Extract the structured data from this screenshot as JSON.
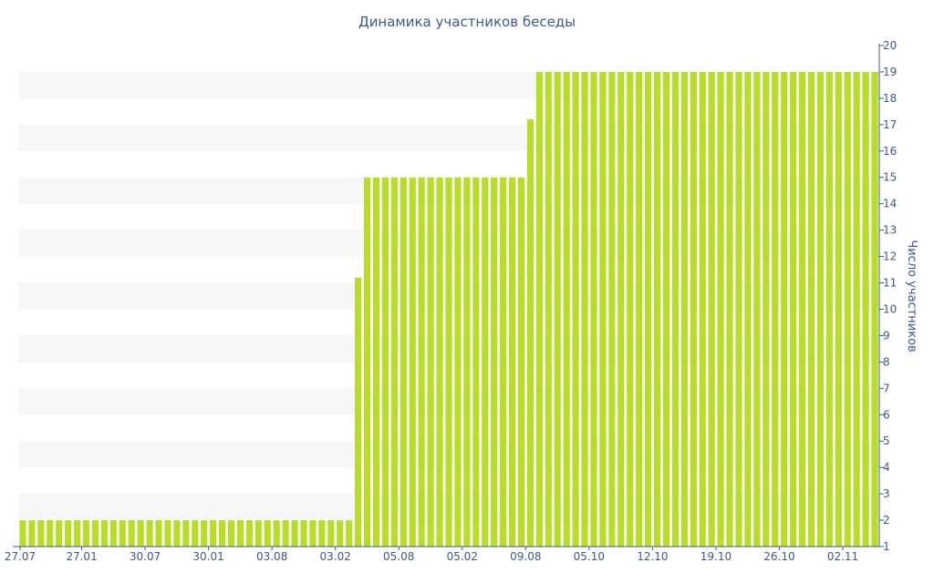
{
  "chart_data": {
    "type": "bar",
    "title": "Динамика участников беседы",
    "ylabel": "Число участников",
    "xlabel": "",
    "ylim": [
      1,
      20
    ],
    "y_ticks": [
      1,
      2,
      3,
      4,
      5,
      6,
      7,
      8,
      9,
      10,
      11,
      12,
      13,
      14,
      15,
      16,
      17,
      18,
      19,
      20
    ],
    "x_tick_labels": [
      "27.07",
      "27.01",
      "30.07",
      "30.01",
      "03.08",
      "03.02",
      "05.08",
      "05.02",
      "09.08",
      "05.10",
      "12.10",
      "19.10",
      "26.10",
      "02.11"
    ],
    "bar_color": "#b7dd29",
    "grid_band_color": "#f7f7f7",
    "text_color": "#3b5a8f",
    "grid": true,
    "y_axis_side": "right",
    "series": [
      {
        "values": [
          2,
          2,
          2,
          2,
          2,
          2,
          2,
          2,
          2,
          2,
          2,
          2,
          2,
          2,
          2,
          2,
          2,
          2,
          2,
          2,
          2,
          2,
          2,
          2,
          2,
          2,
          2,
          2,
          2,
          2,
          2,
          2,
          2,
          2,
          2,
          2,
          2,
          11.2,
          15,
          15,
          15,
          15,
          15,
          15,
          15,
          15,
          15,
          15,
          15,
          15,
          15,
          15,
          15,
          15,
          15,
          15,
          17.2,
          19,
          19,
          19,
          19,
          19,
          19,
          19,
          19,
          19,
          19,
          19,
          19,
          19,
          19,
          19,
          19,
          19,
          19,
          19,
          19,
          19,
          19,
          19,
          19,
          19,
          19,
          19,
          19,
          19,
          19,
          19,
          19,
          19,
          19,
          19,
          19,
          19,
          19
        ]
      }
    ]
  }
}
